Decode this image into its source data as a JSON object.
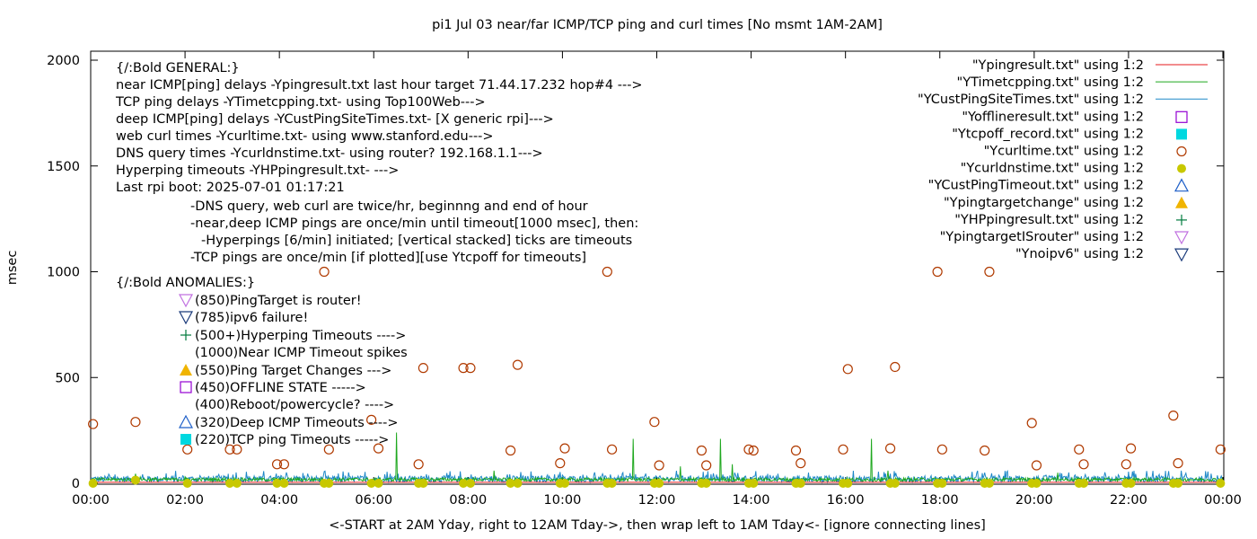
{
  "chart_data": {
    "type": "line",
    "title": "pi1 Jul 03  near/far ICMP/TCP ping and curl times [No msmt 1AM-2AM]",
    "xlabel": "<-START at 2AM Yday, right to 12AM Tday->, then wrap left to 1AM Tday<- [ignore connecting lines]",
    "ylabel": "msec",
    "xlim": [
      0,
      24
    ],
    "ylim": [
      0,
      2000
    ],
    "x_ticks": [
      "00:00",
      "02:00",
      "04:00",
      "06:00",
      "08:00",
      "10:00",
      "12:00",
      "14:00",
      "16:00",
      "18:00",
      "20:00",
      "22:00",
      "00:00"
    ],
    "y_ticks": [
      "0",
      "500",
      "1000",
      "1500",
      "2000"
    ],
    "legend_position": "top-right",
    "legend": [
      {
        "label": "\"Ypingresult.txt\" using 1:2",
        "symbol": "line",
        "color": "#e41a1c"
      },
      {
        "label": "\"YTimetcpping.txt\" using 1:2",
        "symbol": "line",
        "color": "#1fa81f"
      },
      {
        "label": "\"YCustPingSiteTimes.txt\" using 1:2",
        "symbol": "line",
        "color": "#1e88c8"
      },
      {
        "label": "\"Yofflineresult.txt\" using 1:2",
        "symbol": "square-open",
        "color": "#9400d3"
      },
      {
        "label": "\"Ytcpoff_record.txt\" using 1:2",
        "symbol": "square-filled",
        "color": "#00d8e0"
      },
      {
        "label": "\"Ycurltime.txt\" using 1:2",
        "symbol": "circle-open",
        "color": "#b03a00"
      },
      {
        "label": "\"Ycurldnstime.txt\" using 1:2",
        "symbol": "circle-filled",
        "color": "#c8c800"
      },
      {
        "label": "\"YCustPingTimeout.txt\" using 1:2",
        "symbol": "triangle-up-open",
        "color": "#1e5fc8"
      },
      {
        "label": "\"Ypingtargetchange\" using 1:2",
        "symbol": "triangle-up-filled",
        "color": "#f0b400"
      },
      {
        "label": "\"YHPpingresult.txt\" using 1:2",
        "symbol": "plus",
        "color": "#007a3d"
      },
      {
        "label": "\"YpingtargetISrouter\" using 1:2",
        "symbol": "triangle-down-open",
        "color": "#c070e0"
      },
      {
        "label": "\"Ynoipv6\" using 1:2",
        "symbol": "triangle-down-open",
        "color": "#1a3a7a"
      }
    ],
    "annotations": [
      "{/:Bold GENERAL:}",
      "near ICMP[ping] delays -Ypingresult.txt last hour target 71.44.17.232 hop#4 --->",
      "TCP ping delays -YTimetcpping.txt- using Top100Web--->",
      "deep ICMP[ping] delays -YCustPingSiteTimes.txt- [X generic rpi]--->",
      "web curl times -Ycurltime.txt- using www.stanford.edu--->",
      "DNS query times -Ycurldnstime.txt- using router? 192.168.1.1--->",
      "Hyperping timeouts -YHPpingresult.txt- --->",
      "Last rpi boot: 2025-07-01 01:17:21",
      "-DNS query, web curl are twice/hr, beginnng and end of hour",
      "-near,deep ICMP pings are once/min until timeout[1000 msec], then:",
      "-Hyperpings [6/min] initiated; [vertical stacked] ticks are timeouts",
      "-TCP pings are once/min [if plotted][use Ytcpoff for timeouts]",
      "{/:Bold ANOMALIES:}",
      "(850)PingTarget is router!",
      "(785)ipv6 failure!",
      "(500+)Hyperping Timeouts ---->",
      "(1000)Near ICMP Timeout spikes",
      "(550)Ping Target Changes --->",
      "(450)OFFLINE STATE ----->",
      "(400)Reboot/powercycle? ---->",
      "(320)Deep ICMP Timeouts ---->",
      "(220)TCP ping Timeouts ----->"
    ],
    "series": [
      {
        "name": "\"Ycurltime.txt\" using 1:2",
        "points": [
          [
            0.05,
            280
          ],
          [
            0.95,
            290
          ],
          [
            2.05,
            160
          ],
          [
            2.95,
            160
          ],
          [
            3.1,
            160
          ],
          [
            3.95,
            90
          ],
          [
            4.1,
            90
          ],
          [
            4.95,
            1000
          ],
          [
            5.05,
            160
          ],
          [
            5.95,
            300
          ],
          [
            6.1,
            165
          ],
          [
            6.95,
            90
          ],
          [
            7.05,
            545
          ],
          [
            7.9,
            545
          ],
          [
            8.05,
            545
          ],
          [
            8.9,
            155
          ],
          [
            9.05,
            560
          ],
          [
            9.95,
            95
          ],
          [
            10.05,
            165
          ],
          [
            10.95,
            1000
          ],
          [
            11.05,
            160
          ],
          [
            11.95,
            290
          ],
          [
            12.05,
            85
          ],
          [
            12.95,
            155
          ],
          [
            13.05,
            85
          ],
          [
            13.95,
            160
          ],
          [
            14.05,
            155
          ],
          [
            14.95,
            155
          ],
          [
            15.05,
            95
          ],
          [
            15.95,
            160
          ],
          [
            16.05,
            540
          ],
          [
            16.95,
            165
          ],
          [
            17.05,
            550
          ],
          [
            17.95,
            1000
          ],
          [
            18.05,
            160
          ],
          [
            18.95,
            155
          ],
          [
            19.05,
            1000
          ],
          [
            19.95,
            285
          ],
          [
            20.05,
            85
          ],
          [
            20.95,
            160
          ],
          [
            21.05,
            90
          ],
          [
            21.95,
            90
          ],
          [
            22.05,
            165
          ],
          [
            22.95,
            320
          ],
          [
            23.05,
            95
          ],
          [
            23.95,
            160
          ]
        ]
      },
      {
        "name": "\"Ycurldnstime.txt\" using 1:2",
        "points": [
          [
            0.05,
            0
          ],
          [
            0.95,
            15
          ],
          [
            2.05,
            0
          ],
          [
            2.95,
            0
          ],
          [
            3.1,
            0
          ],
          [
            3.95,
            0
          ],
          [
            4.1,
            0
          ],
          [
            4.95,
            0
          ],
          [
            5.05,
            0
          ],
          [
            5.95,
            0
          ],
          [
            6.1,
            0
          ],
          [
            6.95,
            0
          ],
          [
            7.05,
            0
          ],
          [
            7.9,
            0
          ],
          [
            8.05,
            0
          ],
          [
            8.9,
            0
          ],
          [
            9.05,
            0
          ],
          [
            9.95,
            0
          ],
          [
            10.05,
            0
          ],
          [
            10.95,
            0
          ],
          [
            11.05,
            0
          ],
          [
            11.95,
            0
          ],
          [
            12.05,
            0
          ],
          [
            12.95,
            0
          ],
          [
            13.05,
            0
          ],
          [
            13.95,
            0
          ],
          [
            14.05,
            0
          ],
          [
            14.95,
            0
          ],
          [
            15.05,
            0
          ],
          [
            15.95,
            0
          ],
          [
            16.05,
            0
          ],
          [
            16.95,
            0
          ],
          [
            17.05,
            0
          ],
          [
            17.95,
            0
          ],
          [
            18.05,
            0
          ],
          [
            18.95,
            0
          ],
          [
            19.05,
            0
          ],
          [
            19.95,
            0
          ],
          [
            20.05,
            0
          ],
          [
            20.95,
            0
          ],
          [
            21.05,
            0
          ],
          [
            21.95,
            0
          ],
          [
            22.05,
            0
          ],
          [
            22.95,
            0
          ],
          [
            23.05,
            0
          ],
          [
            23.95,
            0
          ]
        ]
      },
      {
        "name": "\"YTimetcpping.txt\" using 1:2",
        "baseline_ms": 20,
        "spikes": [
          [
            0.95,
            45
          ],
          [
            1.05,
            30
          ],
          [
            2.0,
            30
          ],
          [
            6.48,
            240
          ],
          [
            8.55,
            60
          ],
          [
            11.5,
            210
          ],
          [
            12.5,
            80
          ],
          [
            13.35,
            210
          ],
          [
            13.6,
            90
          ],
          [
            16.55,
            210
          ],
          [
            16.9,
            60
          ],
          [
            20.5,
            50
          ]
        ]
      },
      {
        "name": "\"YCustPingSiteTimes.txt\" using 1:2",
        "noise_range_ms": [
          5,
          60
        ],
        "start": 0,
        "end": 24
      },
      {
        "name": "\"Ypingresult.txt\" using 1:2",
        "baseline_ms": 5
      }
    ]
  }
}
